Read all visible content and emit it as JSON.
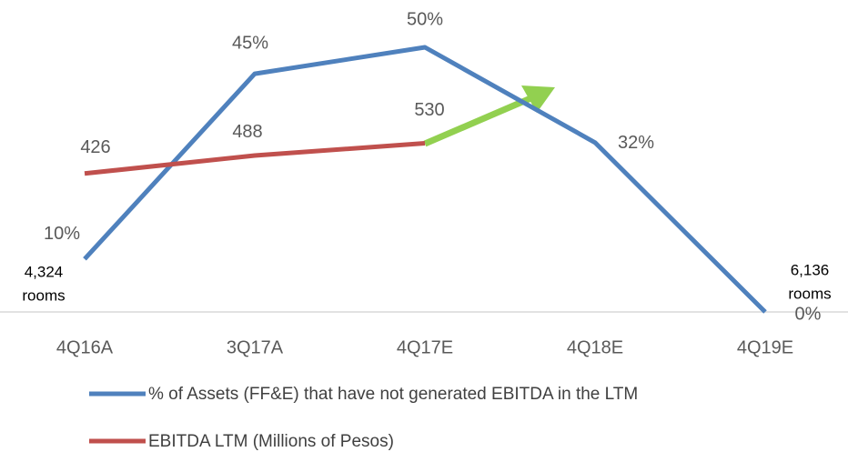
{
  "chart_data": {
    "type": "line",
    "categories": [
      "4Q16A",
      "3Q17A",
      "4Q17E",
      "4Q18E",
      "4Q19E"
    ],
    "series": [
      {
        "name": "% of Assets (FF&E) that have not generated EBITDA in the LTM",
        "color": "#4f81bd",
        "values": [
          10,
          45,
          50,
          32,
          0
        ],
        "value_labels": [
          "10%",
          "45%",
          "50%",
          "32%",
          "0%"
        ]
      },
      {
        "name": "EBITDA LTM (Millions of Pesos)",
        "color": "#c0504d",
        "axis": "y2",
        "values": [
          426,
          488,
          530,
          null,
          null
        ]
      }
    ],
    "ylim": [
      0,
      50
    ],
    "y2lim": [
      -50,
      860
    ],
    "annotations": [
      {
        "lines": [
          "4,324",
          "rooms"
        ]
      },
      {
        "lines": [
          "6,136",
          "rooms"
        ]
      }
    ],
    "legend": "bottom"
  }
}
